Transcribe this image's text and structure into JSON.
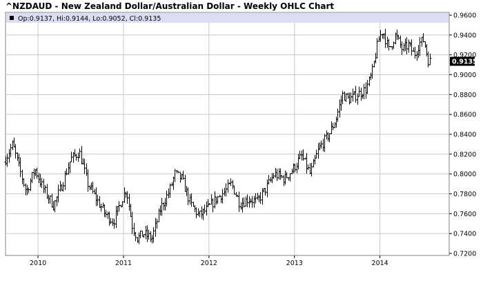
{
  "header": {
    "title": "^NZDAUD - New Zealand Dollar/Australian Dollar - Weekly OHLC Chart"
  },
  "info": {
    "text": "Op:0.9137, Hi:0.9144, Lo:0.9052, Cl:0.9135"
  },
  "last": {
    "label": "0.9135",
    "value": 0.9135
  },
  "colors": {
    "bar": "#000000",
    "grid": "#c8c8c8",
    "info_bg": "#dcdcf2",
    "last_bg": "#000000",
    "frame": "#808080"
  },
  "chart_data": {
    "type": "ohlc",
    "title": "^NZDAUD - New Zealand Dollar/Australian Dollar - Weekly OHLC Chart",
    "xlabel": "",
    "ylabel": "",
    "ylim": [
      0.72,
      0.96
    ],
    "y_ticks": [
      "0.9600",
      "0.9400",
      "0.9200",
      "0.9000",
      "0.8800",
      "0.8600",
      "0.8400",
      "0.8200",
      "0.8000",
      "0.7800",
      "0.7600",
      "0.7400",
      "0.7200"
    ],
    "x_ticks": [
      {
        "label": "2010",
        "t": 2010.0
      },
      {
        "label": "2011",
        "t": 2011.0
      },
      {
        "label": "2012",
        "t": 2012.0
      },
      {
        "label": "2013",
        "t": 2013.0
      },
      {
        "label": "2014",
        "t": 2014.0
      }
    ],
    "x_range": [
      2009.62,
      2014.81
    ],
    "grid": true,
    "anchors": [
      [
        2009.62,
        0.812
      ],
      [
        2009.72,
        0.83
      ],
      [
        2009.8,
        0.805
      ],
      [
        2009.88,
        0.782
      ],
      [
        2009.98,
        0.805
      ],
      [
        2010.08,
        0.785
      ],
      [
        2010.2,
        0.768
      ],
      [
        2010.3,
        0.79
      ],
      [
        2010.4,
        0.815
      ],
      [
        2010.5,
        0.822
      ],
      [
        2010.6,
        0.79
      ],
      [
        2010.7,
        0.775
      ],
      [
        2010.8,
        0.76
      ],
      [
        2010.9,
        0.752
      ],
      [
        2011.0,
        0.775
      ],
      [
        2011.05,
        0.785
      ],
      [
        2011.12,
        0.748
      ],
      [
        2011.18,
        0.735
      ],
      [
        2011.25,
        0.74
      ],
      [
        2011.35,
        0.735
      ],
      [
        2011.45,
        0.765
      ],
      [
        2011.55,
        0.782
      ],
      [
        2011.62,
        0.8
      ],
      [
        2011.7,
        0.795
      ],
      [
        2011.8,
        0.77
      ],
      [
        2011.9,
        0.758
      ],
      [
        2012.0,
        0.765
      ],
      [
        2012.1,
        0.775
      ],
      [
        2012.2,
        0.782
      ],
      [
        2012.28,
        0.79
      ],
      [
        2012.38,
        0.77
      ],
      [
        2012.48,
        0.775
      ],
      [
        2012.58,
        0.772
      ],
      [
        2012.68,
        0.785
      ],
      [
        2012.78,
        0.8
      ],
      [
        2012.9,
        0.795
      ],
      [
        2013.0,
        0.805
      ],
      [
        2013.1,
        0.818
      ],
      [
        2013.2,
        0.8
      ],
      [
        2013.3,
        0.825
      ],
      [
        2013.42,
        0.84
      ],
      [
        2013.5,
        0.855
      ],
      [
        2013.58,
        0.88
      ],
      [
        2013.65,
        0.875
      ],
      [
        2013.75,
        0.88
      ],
      [
        2013.85,
        0.885
      ],
      [
        2013.92,
        0.9
      ],
      [
        2014.0,
        0.935
      ],
      [
        2014.05,
        0.945
      ],
      [
        2014.12,
        0.925
      ],
      [
        2014.2,
        0.94
      ],
      [
        2014.28,
        0.925
      ],
      [
        2014.35,
        0.93
      ],
      [
        2014.42,
        0.92
      ],
      [
        2014.48,
        0.932
      ],
      [
        2014.53,
        0.935
      ],
      [
        2014.58,
        0.915
      ],
      [
        2014.6,
        0.9135
      ]
    ]
  }
}
